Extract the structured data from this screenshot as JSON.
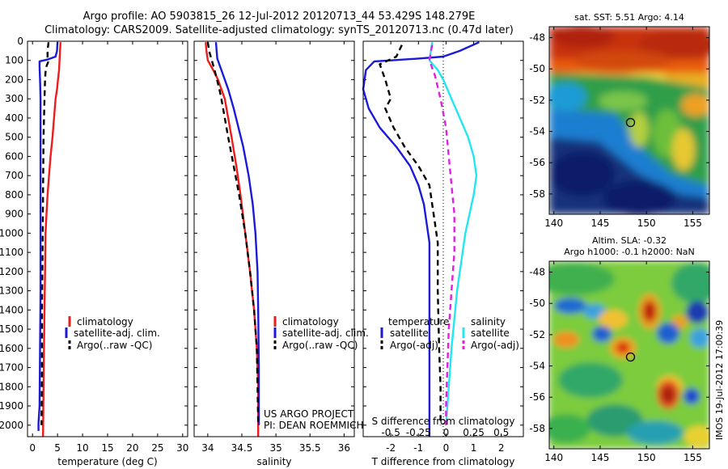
{
  "header": {
    "title1": "Argo profile: AO 5903815_26 12-Jul-2012 20120713_44 53.429S 148.279E",
    "title2": "Climatology: CARS2009. Satellite-adjusted climatology: synTS_20120713.nc (0.47d later)"
  },
  "colors": {
    "clim": "#ee1c1c",
    "sat": "#1a1ad8",
    "argo": "#000000",
    "sat_s": "#22e6f0",
    "argo_s": "#e020e0"
  },
  "chart_data": [
    {
      "type": "line",
      "id": "temperature",
      "xlabel": "temperature (deg C)",
      "ylabel": "",
      "xlim": [
        -1,
        31
      ],
      "ylim": [
        2060,
        0
      ],
      "xticks": [
        0,
        5,
        10,
        15,
        20,
        25,
        30
      ],
      "yticks": [
        0,
        100,
        200,
        300,
        400,
        500,
        600,
        700,
        800,
        900,
        1000,
        1100,
        1200,
        1300,
        1400,
        1500,
        1600,
        1700,
        1800,
        1900,
        2000
      ],
      "legend": [
        "climatology",
        "satellite-adj. clim.",
        "Argo(..raw -QC)"
      ],
      "series": [
        {
          "name": "climatology",
          "color": "#ee1c1c",
          "dash": "",
          "x": [
            5.6,
            5.5,
            5.4,
            5.3,
            5.1,
            4.9,
            4.6,
            4.3,
            4.0,
            3.6,
            3.3,
            3.0,
            2.8,
            2.6,
            2.5,
            2.4,
            2.3,
            2.2,
            2.1
          ],
          "y": [
            5,
            50,
            100,
            150,
            200,
            250,
            300,
            400,
            500,
            600,
            700,
            800,
            900,
            1000,
            1200,
            1400,
            1600,
            1800,
            2060
          ]
        },
        {
          "name": "satellite-adj. clim.",
          "color": "#1a1ad8",
          "dash": "",
          "x": [
            5.0,
            4.9,
            4.6,
            3.0,
            1.4,
            1.4,
            1.5,
            1.6,
            1.6,
            1.6,
            1.6,
            1.6,
            1.5,
            1.4,
            1.2,
            1.2
          ],
          "y": [
            5,
            50,
            80,
            95,
            105,
            130,
            200,
            300,
            500,
            800,
            1000,
            1300,
            1600,
            1900,
            1990,
            2030
          ]
        },
        {
          "name": "Argo(..raw -QC)",
          "color": "#000000",
          "dash": "7,5",
          "x": [
            3.2,
            3.0,
            3.0,
            3.1,
            2.8,
            2.6,
            2.5,
            2.4,
            2.2,
            2.1,
            2.0,
            1.9,
            1.9,
            1.8
          ],
          "y": [
            5,
            50,
            90,
            110,
            130,
            160,
            200,
            300,
            500,
            800,
            1100,
            1400,
            1700,
            2000
          ]
        }
      ]
    },
    {
      "type": "line",
      "id": "salinity",
      "xlabel": "salinity",
      "xlim": [
        33.8,
        36.15
      ],
      "ylim": [
        2060,
        0
      ],
      "xticks": [
        34,
        34.5,
        35,
        35.5,
        36
      ],
      "yticks": [
        0,
        100,
        200,
        300,
        400,
        500,
        600,
        700,
        800,
        900,
        1000,
        1100,
        1200,
        1300,
        1400,
        1500,
        1600,
        1700,
        1800,
        1900,
        2000
      ],
      "legend": [
        "climatology",
        "satellite-adj. clim.",
        "Argo(..raw -QC)"
      ],
      "annotation": [
        "US ARGO PROJECT",
        "PI: DEAN ROEMMICH"
      ],
      "series": [
        {
          "name": "climatology",
          "color": "#ee1c1c",
          "dash": "",
          "x": [
            33.97,
            33.98,
            34.0,
            34.08,
            34.15,
            34.2,
            34.25,
            34.3,
            34.35,
            34.42,
            34.48,
            34.55,
            34.62,
            34.68,
            34.72,
            34.74,
            34.74
          ],
          "y": [
            5,
            50,
            100,
            150,
            200,
            250,
            300,
            400,
            500,
            650,
            800,
            1000,
            1200,
            1400,
            1600,
            1800,
            2060
          ]
        },
        {
          "name": "satellite-adj. clim.",
          "color": "#1a1ad8",
          "dash": "",
          "x": [
            34.12,
            34.13,
            34.14,
            34.2,
            34.3,
            34.38,
            34.45,
            34.52,
            34.6,
            34.66,
            34.7,
            34.73,
            34.74,
            34.75,
            34.75
          ],
          "y": [
            5,
            50,
            90,
            150,
            250,
            350,
            450,
            550,
            700,
            850,
            1000,
            1200,
            1400,
            1700,
            2000
          ]
        },
        {
          "name": "Argo(..raw -QC)",
          "color": "#000000",
          "dash": "7,5",
          "x": [
            34.0,
            34.02,
            34.1,
            34.17,
            34.2,
            34.25,
            34.3,
            34.38,
            34.46,
            34.55,
            34.62,
            34.68,
            34.72,
            34.73,
            34.74
          ],
          "y": [
            5,
            50,
            150,
            250,
            300,
            400,
            500,
            650,
            800,
            1000,
            1200,
            1400,
            1600,
            1800,
            2000
          ]
        }
      ]
    },
    {
      "type": "line",
      "id": "difference",
      "xlabel_top": "S difference from climatology",
      "xlabel": "T difference from climatology",
      "xlim": [
        -3.0,
        2.8
      ],
      "ylim": [
        2060,
        0
      ],
      "xticks": [
        -2,
        -1,
        0,
        1,
        2
      ],
      "xticks_top_labels": [
        "-0.5",
        "-0.25",
        "0",
        "0.25",
        "0.5"
      ],
      "xticks_top_pos": [
        -2,
        -1,
        0,
        1,
        2
      ],
      "legend_left": [
        "temperature",
        "satellite",
        "Argo(-adj)"
      ],
      "legend_right": [
        "salinity",
        "satellite",
        "Argo(-adj)"
      ],
      "series": [
        {
          "name": "satellite",
          "color": "#1a1ad8",
          "dash": "",
          "x": [
            1.2,
            0.5,
            -0.1,
            -1.0,
            -2.0,
            -2.6,
            -2.9,
            -3.0,
            -2.8,
            -2.4,
            -1.8,
            -1.3,
            -1.0,
            -0.8,
            -0.7,
            -0.6,
            -0.6,
            -0.6,
            -0.6,
            -0.6,
            -0.6
          ],
          "y": [
            5,
            50,
            80,
            90,
            100,
            105,
            150,
            250,
            350,
            450,
            550,
            650,
            750,
            850,
            950,
            1050,
            1200,
            1500,
            1800,
            2000,
            2060
          ]
        },
        {
          "name": "Argo(-adj)",
          "color": "#000000",
          "dash": "7,5",
          "x": [
            -1.6,
            -1.8,
            -2.4,
            -2.2,
            -2.0,
            -2.2,
            -1.9,
            -1.5,
            -1.0,
            -0.6,
            -0.5,
            -0.4,
            -0.3,
            -0.3,
            -0.25,
            -0.2,
            -0.2
          ],
          "y": [
            20,
            80,
            120,
            200,
            300,
            350,
            450,
            550,
            650,
            750,
            850,
            950,
            1050,
            1300,
            1600,
            1800,
            2000
          ]
        },
        {
          "name": "satellite",
          "color": "#22e6f0",
          "dash": "",
          "x": [
            -0.5,
            -0.6,
            -0.3,
            -0.1,
            0.2,
            0.5,
            0.8,
            1.0,
            1.1,
            1.0,
            0.7,
            0.4,
            0.2,
            0.1,
            0.0
          ],
          "y": [
            5,
            100,
            150,
            200,
            300,
            400,
            500,
            600,
            700,
            800,
            1000,
            1300,
            1600,
            1800,
            2000
          ]
        },
        {
          "name": "Argo(-adj)",
          "color": "#e020e0",
          "dash": "7,5",
          "x": [
            -0.5,
            -0.6,
            -0.4,
            -0.2,
            0.0,
            0.1,
            0.2,
            0.3,
            0.3,
            0.2,
            0.1,
            0.05,
            0.0,
            0.0
          ],
          "y": [
            20,
            100,
            180,
            300,
            450,
            600,
            750,
            900,
            1100,
            1300,
            1500,
            1700,
            1900,
            2000
          ]
        }
      ]
    },
    {
      "type": "heatmap",
      "id": "sst-map",
      "title": "sat. SST: 5.51 Argo: 4.14",
      "xlim": [
        139.5,
        156.8
      ],
      "ylim": [
        -59.3,
        -47.3
      ],
      "xticks": [
        140,
        145,
        150,
        155
      ],
      "yticks": [
        -48,
        -50,
        -52,
        -54,
        -56,
        -58
      ],
      "marker": {
        "lon": 148.28,
        "lat": -53.43
      }
    },
    {
      "type": "heatmap",
      "id": "sla-map",
      "title1": "Altim. SLA: -0.32",
      "title2": "Argo h1000: -0.1 h2000: NaN",
      "xlim": [
        139.5,
        156.8
      ],
      "ylim": [
        -59.3,
        -47.3
      ],
      "xticks": [
        140,
        145,
        150,
        155
      ],
      "yticks": [
        -48,
        -50,
        -52,
        -54,
        -56,
        -58
      ],
      "marker": {
        "lon": 148.28,
        "lat": -53.43
      }
    }
  ],
  "footer": {
    "imos": "IMOS 19-Jul-2012 17:00:39"
  }
}
